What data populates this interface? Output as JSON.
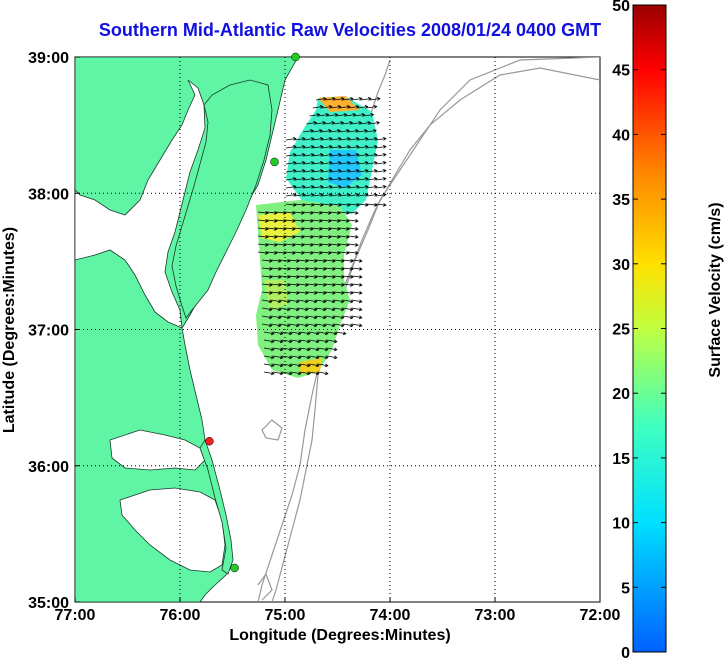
{
  "title": "Southern Mid-Atlantic Raw Velocities 2008/01/24 0400 GMT",
  "axes": {
    "xlabel": "Longitude (Degrees:Minutes)",
    "ylabel": "Latitude (Degrees:Minutes)",
    "x_ticks": [
      "77:00",
      "76:00",
      "75:00",
      "74:00",
      "73:00",
      "72:00"
    ],
    "y_ticks": [
      "39:00",
      "38:00",
      "37:00",
      "36:00",
      "35:00"
    ],
    "grid": "dotted"
  },
  "colorbar": {
    "label": "Surface Velocity (cm/s)",
    "ticks": [
      "50",
      "45",
      "40",
      "35",
      "30",
      "25",
      "20",
      "15",
      "10",
      "5",
      "0"
    ],
    "range": [
      0,
      50
    ]
  },
  "colors": {
    "land": "#5ff5a5",
    "title": "#1010e0",
    "bathymetry": "#999999",
    "station_green": "#22cc22",
    "station_red": "#ee2222"
  },
  "chart_data": {
    "type": "map",
    "xlim": [
      -77,
      -72
    ],
    "ylim": [
      35,
      39
    ],
    "stations": [
      {
        "lon": -74.9,
        "lat": 39.0,
        "status": "green"
      },
      {
        "lon": -75.1,
        "lat": 38.23,
        "status": "green"
      },
      {
        "lon": -75.72,
        "lat": 36.18,
        "status": "red"
      },
      {
        "lon": -75.48,
        "lat": 35.25,
        "status": "green"
      }
    ]
  }
}
